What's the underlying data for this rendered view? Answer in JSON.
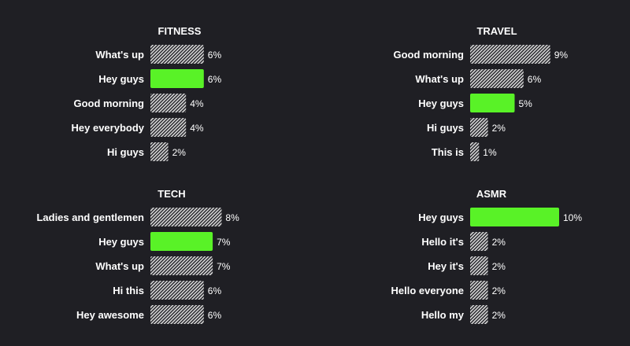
{
  "colors": {
    "background": "#1f1f24",
    "highlight": "#59f227",
    "hatch_light": "#d9d9d9",
    "hatch_dark": "#2a2a2f",
    "text": "#ffffff"
  },
  "chart_data": [
    {
      "type": "bar",
      "orientation": "horizontal",
      "title": "FITNESS",
      "categories": [
        "What's up",
        "Hey guys",
        "Good morning",
        "Hey everybody",
        "Hi guys"
      ],
      "values": [
        6,
        6,
        4,
        4,
        2
      ],
      "value_labels": [
        "6%",
        "6%",
        "4%",
        "4%",
        "2%"
      ],
      "highlight": "Hey guys",
      "unit": "%"
    },
    {
      "type": "bar",
      "orientation": "horizontal",
      "title": "TRAVEL",
      "categories": [
        "Good morning",
        "What's up",
        "Hey guys",
        "Hi guys",
        "This is"
      ],
      "values": [
        9,
        6,
        5,
        2,
        1
      ],
      "value_labels": [
        "9%",
        "6%",
        "5%",
        "2%",
        "1%"
      ],
      "highlight": "Hey guys",
      "unit": "%"
    },
    {
      "type": "bar",
      "orientation": "horizontal",
      "title": "TECH",
      "categories": [
        "Ladies and gentlemen",
        "Hey guys",
        "What's up",
        "Hi this",
        "Hey awesome"
      ],
      "values": [
        8,
        7,
        7,
        6,
        6
      ],
      "value_labels": [
        "8%",
        "7%",
        "7%",
        "6%",
        "6%"
      ],
      "highlight": "Hey guys",
      "unit": "%"
    },
    {
      "type": "bar",
      "orientation": "horizontal",
      "title": "ASMR",
      "categories": [
        "Hey guys",
        "Hello it's",
        "Hey it's",
        "Hello everyone",
        "Hello my"
      ],
      "values": [
        10,
        2,
        2,
        2,
        2
      ],
      "value_labels": [
        "10%",
        "2%",
        "2%",
        "2%",
        "2%"
      ],
      "highlight": "Hey guys",
      "unit": "%"
    }
  ]
}
